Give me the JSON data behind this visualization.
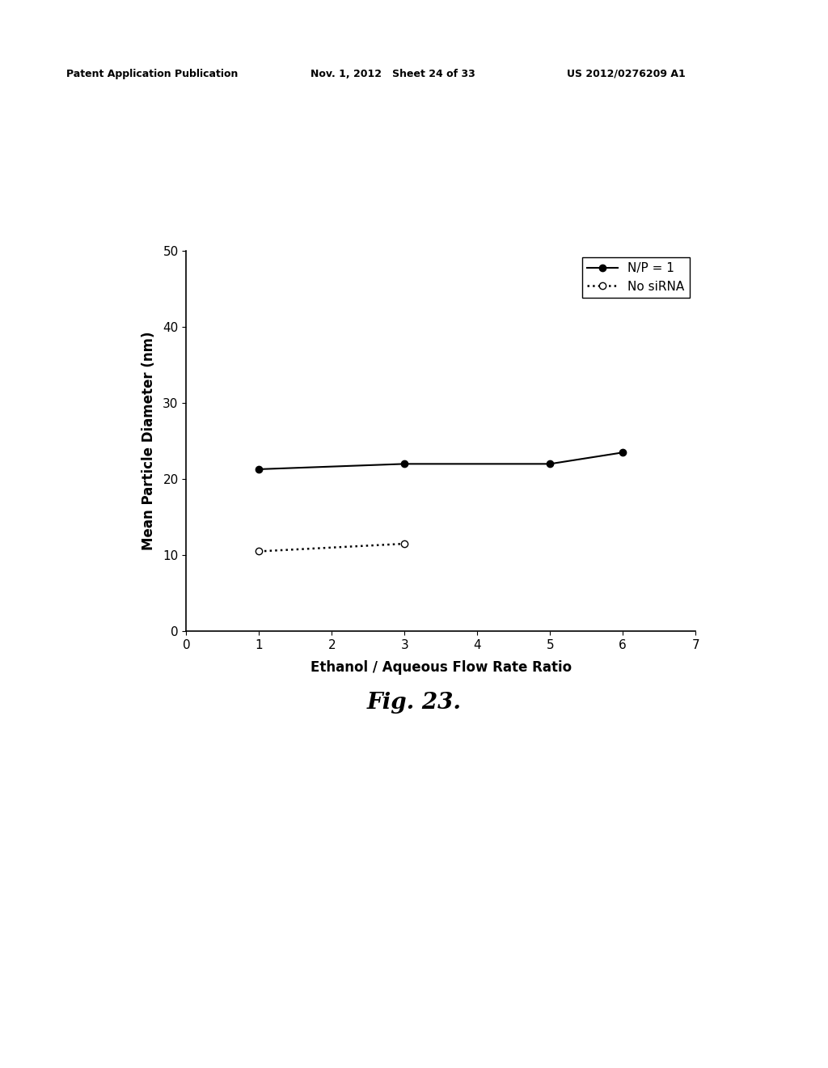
{
  "series1_label": "N/P = 1",
  "series1_x": [
    1,
    3,
    5,
    6
  ],
  "series1_y": [
    21.3,
    22.0,
    22.0,
    23.5
  ],
  "series2_label": "No siRNA",
  "series2_x": [
    1,
    3
  ],
  "series2_y": [
    10.5,
    11.5
  ],
  "xlabel": "Ethanol / Aqueous Flow Rate Ratio",
  "ylabel": "Mean Particle Diameter (nm)",
  "xlim": [
    0,
    7
  ],
  "ylim": [
    0,
    50
  ],
  "xticks": [
    0,
    1,
    2,
    3,
    4,
    5,
    6,
    7
  ],
  "yticks": [
    0,
    10,
    20,
    30,
    40,
    50
  ],
  "fig_caption": "Fig. 23.",
  "header_left": "Patent Application Publication",
  "header_mid": "Nov. 1, 2012   Sheet 24 of 33",
  "header_right": "US 2012/0276209 A1",
  "background_color": "#ffffff",
  "line_color": "#000000",
  "header_fontsize": 9,
  "axis_fontsize": 12,
  "tick_fontsize": 11,
  "legend_fontsize": 11,
  "caption_fontsize": 20
}
